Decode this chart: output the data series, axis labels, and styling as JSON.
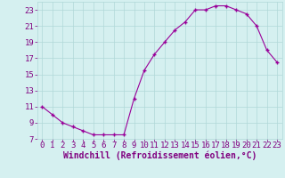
{
  "x": [
    0,
    1,
    2,
    3,
    4,
    5,
    6,
    7,
    8,
    9,
    10,
    11,
    12,
    13,
    14,
    15,
    16,
    17,
    18,
    19,
    20,
    21,
    22,
    23
  ],
  "y": [
    11.0,
    10.0,
    9.0,
    8.5,
    8.0,
    7.5,
    7.5,
    7.5,
    7.5,
    12.0,
    15.5,
    17.5,
    19.0,
    20.5,
    21.5,
    23.0,
    23.0,
    23.5,
    23.5,
    23.0,
    22.5,
    21.0,
    18.0,
    16.5
  ],
  "line_color": "#990099",
  "marker": "+",
  "xlabel": "Windchill (Refroidissement éolien,°C)",
  "ylabel": "",
  "xlim": [
    -0.5,
    23.5
  ],
  "ylim": [
    7,
    24
  ],
  "yticks": [
    7,
    9,
    11,
    13,
    15,
    17,
    19,
    21,
    23
  ],
  "xticks": [
    0,
    1,
    2,
    3,
    4,
    5,
    6,
    7,
    8,
    9,
    10,
    11,
    12,
    13,
    14,
    15,
    16,
    17,
    18,
    19,
    20,
    21,
    22,
    23
  ],
  "bg_color": "#d5f0f0",
  "grid_color": "#b0d8d8",
  "tick_label_color": "#800080",
  "xlabel_color": "#800080",
  "xlabel_fontsize": 7,
  "tick_fontsize": 6.5
}
